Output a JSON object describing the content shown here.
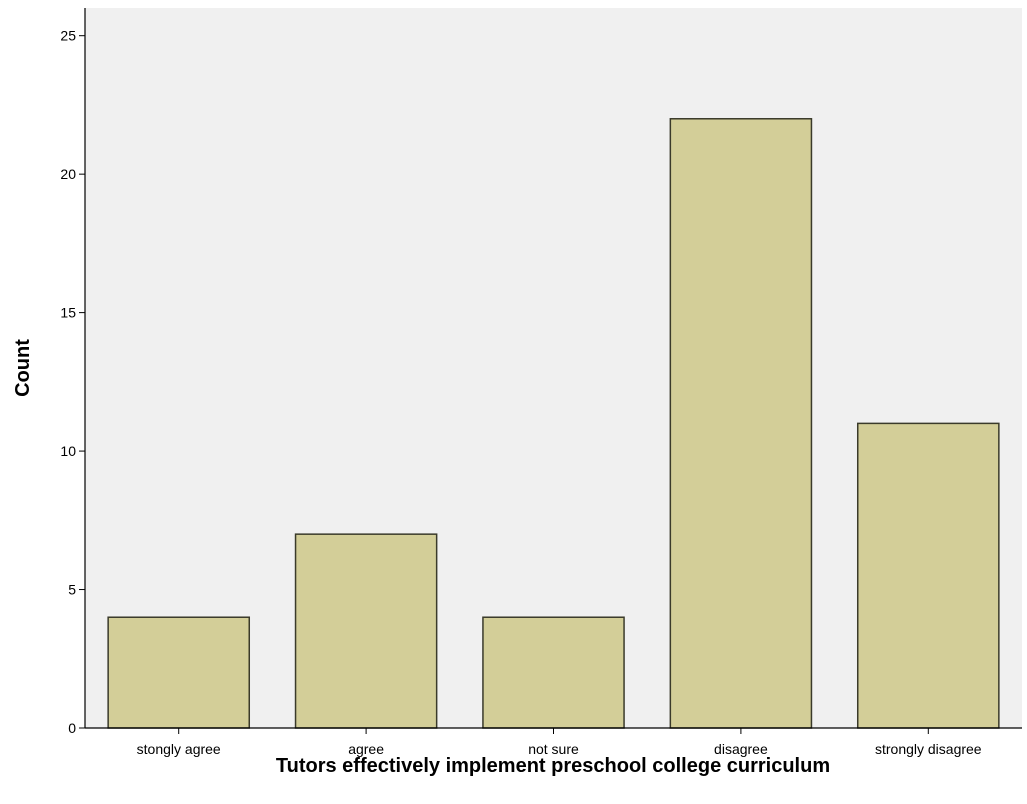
{
  "chart_data": {
    "type": "bar",
    "title": "",
    "xlabel": "Tutors effectively implement preschool college curriculum",
    "ylabel": "Count",
    "categories": [
      "stongly agree",
      "agree",
      "not sure",
      "disagree",
      "strongly disagree"
    ],
    "values": [
      4,
      7,
      4,
      22,
      11
    ],
    "ylim": [
      0,
      26
    ],
    "yticks": [
      0,
      5,
      10,
      15,
      20,
      25
    ],
    "grid": false,
    "legend": "none",
    "colors": {
      "plot_background": "#f0f0f0",
      "bar_fill": "#d3ce98",
      "bar_stroke": "#3a3a2a",
      "axis": "#000000"
    }
  }
}
